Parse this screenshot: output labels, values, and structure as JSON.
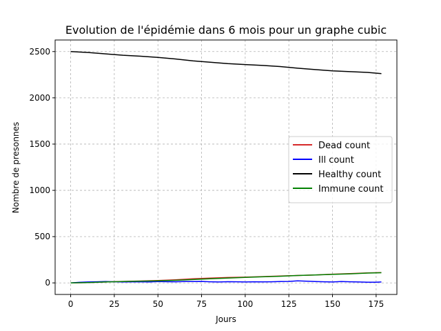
{
  "chart_data": {
    "type": "line",
    "title": "Evolution de l'épidémie dans 6 mois pour un graphe cubic",
    "xlabel": "Jours",
    "ylabel": "Nombre de presonnes",
    "xlim": [
      -8.9,
      186.9
    ],
    "ylim": [
      -125,
      2625
    ],
    "xticks": [
      0,
      25,
      50,
      75,
      100,
      125,
      150,
      175
    ],
    "yticks": [
      0,
      500,
      1000,
      1500,
      2000,
      2500
    ],
    "grid": true,
    "legend_position": "right",
    "series": [
      {
        "name": "Dead count",
        "color": "#d62728",
        "x": [
          0,
          10,
          20,
          30,
          40,
          50,
          60,
          70,
          80,
          90,
          100,
          110,
          120,
          130,
          140,
          150,
          160,
          170,
          178
        ],
        "y": [
          0,
          4,
          10,
          16,
          20,
          26,
          34,
          44,
          52,
          58,
          62,
          68,
          74,
          80,
          86,
          94,
          100,
          108,
          112
        ]
      },
      {
        "name": "Ill count",
        "color": "#0000ff",
        "x": [
          0,
          5,
          10,
          15,
          20,
          25,
          30,
          35,
          40,
          45,
          50,
          55,
          60,
          65,
          70,
          75,
          80,
          85,
          90,
          95,
          100,
          105,
          110,
          115,
          120,
          125,
          130,
          135,
          140,
          145,
          150,
          155,
          160,
          165,
          170,
          175,
          178
        ],
        "y": [
          0,
          6,
          10,
          12,
          14,
          12,
          10,
          11,
          12,
          10,
          14,
          13,
          12,
          15,
          14,
          16,
          12,
          10,
          13,
          12,
          10,
          12,
          11,
          12,
          14,
          16,
          22,
          18,
          15,
          12,
          10,
          14,
          12,
          10,
          8,
          8,
          10
        ]
      },
      {
        "name": "Healthy count",
        "color": "#000000",
        "x": [
          0,
          10,
          20,
          30,
          40,
          50,
          60,
          70,
          80,
          90,
          100,
          110,
          120,
          130,
          140,
          150,
          160,
          170,
          178
        ],
        "y": [
          2500,
          2490,
          2475,
          2460,
          2450,
          2437,
          2420,
          2400,
          2385,
          2370,
          2360,
          2350,
          2338,
          2320,
          2305,
          2292,
          2283,
          2275,
          2262
        ]
      },
      {
        "name": "Immune count",
        "color": "#008000",
        "x": [
          0,
          10,
          20,
          30,
          40,
          50,
          60,
          70,
          80,
          90,
          100,
          110,
          120,
          130,
          140,
          150,
          160,
          170,
          178
        ],
        "y": [
          0,
          4,
          10,
          14,
          18,
          22,
          28,
          36,
          44,
          52,
          60,
          66,
          72,
          80,
          86,
          92,
          98,
          106,
          110
        ]
      }
    ]
  }
}
